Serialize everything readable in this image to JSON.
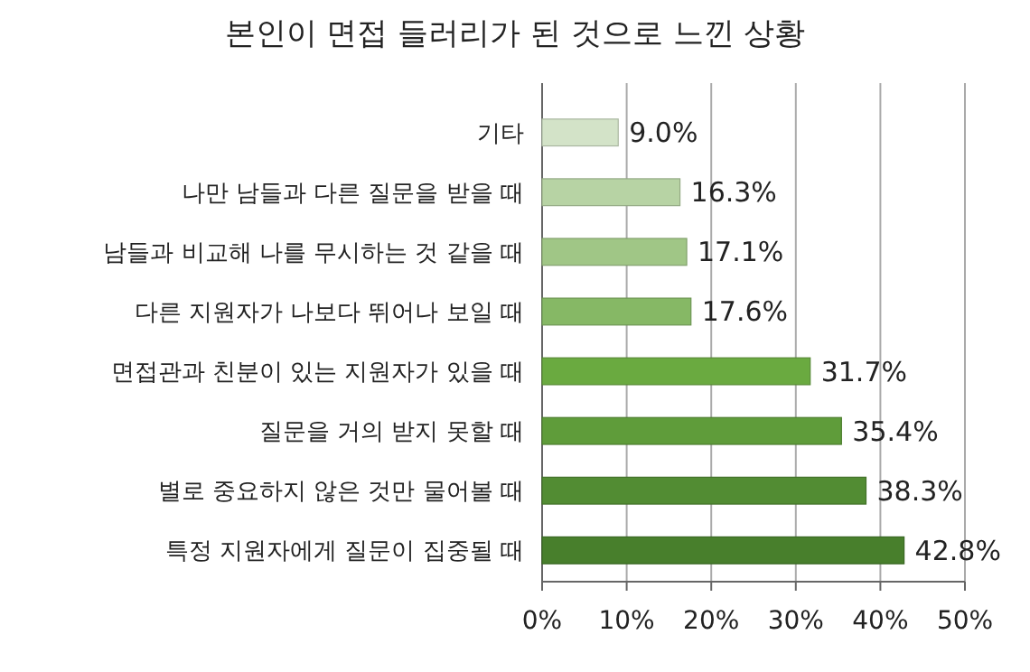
{
  "chart_data": {
    "type": "bar",
    "orientation": "horizontal",
    "title": "본인이 면접 들러리가 된 것으로 느낀 상황",
    "categories": [
      "기타",
      "나만 남들과 다른 질문을 받을 때",
      "남들과 비교해 나를 무시하는 것 같을 때",
      "다른 지원자가 나보다 뛰어나 보일 때",
      "면접관과 친분이 있는 지원자가 있을 때",
      "질문을 거의 받지 못할 때",
      "별로 중요하지 않은 것만 물어볼 때",
      "특정 지원자에게 질문이 집중될 때"
    ],
    "values": [
      9.0,
      16.3,
      17.1,
      17.6,
      31.7,
      35.4,
      38.3,
      42.8
    ],
    "value_labels": [
      "9.0%",
      "16.3%",
      "17.1%",
      "17.6%",
      "31.7%",
      "35.4%",
      "38.3%",
      "42.8%"
    ],
    "colors": [
      "#d3e3c8",
      "#b7d3a4",
      "#a0c686",
      "#86b865",
      "#6aaa40",
      "#5f9c3a",
      "#528c33",
      "#487f2c"
    ],
    "xlim": [
      0,
      50
    ],
    "xticks": [
      {
        "value": 0,
        "label": "0%"
      },
      {
        "value": 10,
        "label": "10%"
      },
      {
        "value": 20,
        "label": "20%"
      },
      {
        "value": 30,
        "label": "30%"
      },
      {
        "value": 40,
        "label": "40%"
      },
      {
        "value": 50,
        "label": "50%"
      }
    ],
    "grid": "x"
  }
}
